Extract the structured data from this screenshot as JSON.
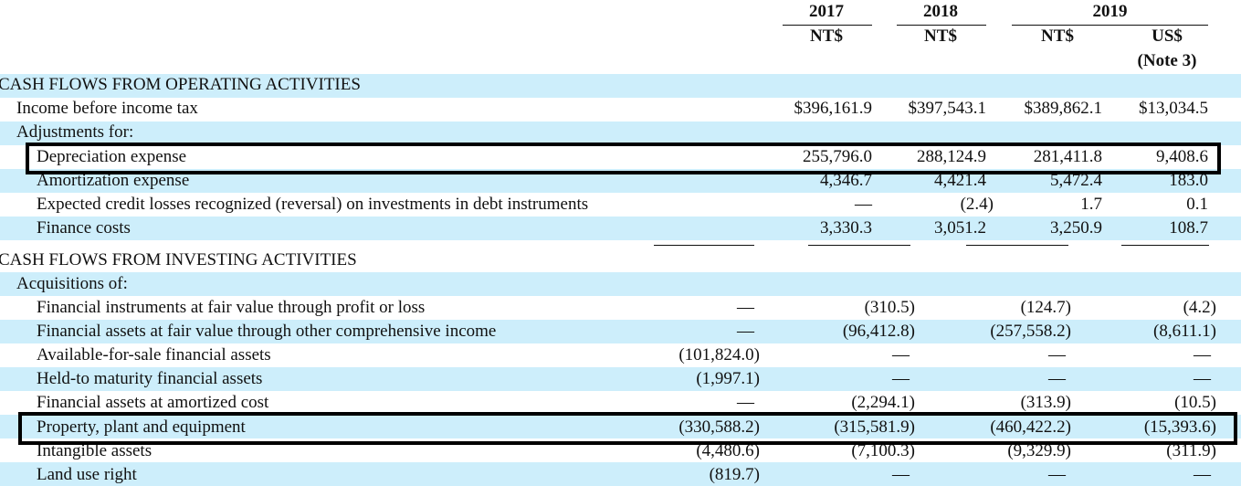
{
  "header": {
    "year_2017": "2017",
    "year_2018": "2018",
    "year_2019": "2019",
    "currency_2017": "NT$",
    "currency_2018": "NT$",
    "currency_2019_ntd": "NT$",
    "currency_2019_usd": "US$",
    "usd_note": "(Note 3)"
  },
  "operating": {
    "section_title": "CASH FLOWS FROM OPERATING ACTIVITIES",
    "income_before_tax": {
      "label": "Income before income tax",
      "v2017": "$396,161.9",
      "v2018": "$397,543.1",
      "v2019ntd": "$389,862.1",
      "v2019usd": "$13,034.5"
    },
    "adjustments_label": "Adjustments for:",
    "depreciation": {
      "label": "Depreciation expense",
      "v2017": "255,796.0",
      "v2018": "288,124.9",
      "v2019ntd": "281,411.8",
      "v2019usd": "9,408.6"
    },
    "amortization": {
      "label": "Amortization expense",
      "v2017": "4,346.7",
      "v2018": "4,421.4",
      "v2019ntd": "5,472.4",
      "v2019usd": "183.0"
    },
    "credit_losses": {
      "label": "Expected credit losses recognized (reversal) on investments in debt instruments",
      "v2017": "—",
      "v2018": "(2.4)",
      "v2019ntd": "1.7",
      "v2019usd": "0.1"
    },
    "finance_costs": {
      "label": "Finance costs",
      "v2017": "3,330.3",
      "v2018": "3,051.2",
      "v2019ntd": "3,250.9",
      "v2019usd": "108.7"
    }
  },
  "investing": {
    "section_title": "CASH FLOWS FROM INVESTING ACTIVITIES",
    "acquisitions_label": "Acquisitions of:",
    "fvtpl": {
      "label": "Financial instruments at fair value through profit or loss",
      "v2017": "—",
      "v2018": "(310.5)",
      "v2019ntd": "(124.7)",
      "v2019usd": "(4.2)"
    },
    "fvoci": {
      "label": "Financial assets at fair value through other comprehensive income",
      "v2017": "—",
      "v2018": "(96,412.8)",
      "v2019ntd": "(257,558.2)",
      "v2019usd": "(8,611.1)"
    },
    "afs": {
      "label": "Available-for-sale financial assets",
      "v2017": "(101,824.0)",
      "v2018": "—",
      "v2019ntd": "—",
      "v2019usd": "—"
    },
    "htm": {
      "label": "Held-to maturity financial assets",
      "v2017": "(1,997.1)",
      "v2018": "—",
      "v2019ntd": "—",
      "v2019usd": "—"
    },
    "amortized_cost": {
      "label": "Financial assets at amortized cost",
      "v2017": "—",
      "v2018": "(2,294.1)",
      "v2019ntd": "(313.9)",
      "v2019usd": "(10.5)"
    },
    "ppe": {
      "label": "Property, plant and equipment",
      "v2017": "(330,588.2)",
      "v2018": "(315,581.9)",
      "v2019ntd": "(460,422.2)",
      "v2019usd": "(15,393.6)"
    },
    "intangible": {
      "label": "Intangible assets",
      "v2017": "(4,480.6)",
      "v2018": "(7,100.3)",
      "v2019ntd": "(9,329.9)",
      "v2019usd": "(311.9)"
    },
    "land_use": {
      "label": "Land use right",
      "v2017": "(819.7)",
      "v2018": "—",
      "v2019ntd": "—",
      "v2019usd": "—"
    }
  }
}
